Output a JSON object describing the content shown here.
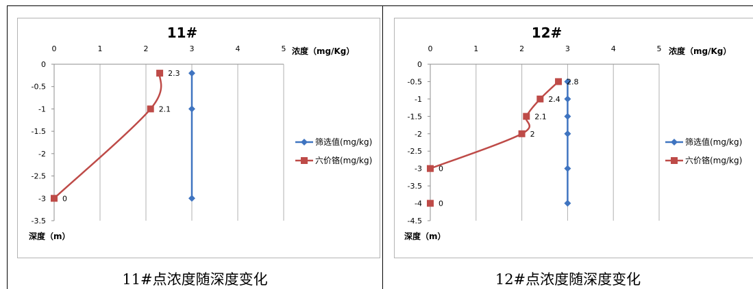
{
  "colors": {
    "screening": "#3f74c0",
    "chromium": "#be4b48",
    "grid": "#b0b0b0"
  },
  "panels": [
    {
      "caption": "11#点浓度随深度变化"
    },
    {
      "caption": "12#点浓度随深度变化"
    }
  ],
  "chart_data": [
    {
      "type": "line",
      "title": "11#",
      "xlabel": "浓度（mg/Kg）",
      "ylabel": "深度（m）",
      "x_ticks": [
        "0",
        "1",
        "2",
        "3",
        "4",
        "5"
      ],
      "y_ticks": [
        "0",
        "-0.5",
        "-1",
        "-1.5",
        "-2",
        "-2.5",
        "-3",
        "-3.5"
      ],
      "xlim": [
        0,
        5
      ],
      "ylim": [
        -3.5,
        0
      ],
      "grid": true,
      "legend_position": "right",
      "series": [
        {
          "name": "筛选值(mg/kg)",
          "points": [
            [
              3,
              -0.2
            ],
            [
              3,
              -1
            ],
            [
              3,
              -3
            ]
          ],
          "labels": []
        },
        {
          "name": "六价铬(mg/kg)",
          "points": [
            [
              2.3,
              -0.2
            ],
            [
              2.1,
              -1
            ],
            [
              0,
              -3
            ]
          ],
          "labels": [
            "2.3",
            "2.1",
            "0"
          ]
        }
      ]
    },
    {
      "type": "line",
      "title": "12#",
      "xlabel": "浓度（mg/Kg）",
      "ylabel": "深度（m）",
      "x_ticks": [
        "0",
        "1",
        "2",
        "3",
        "4",
        "5"
      ],
      "y_ticks": [
        "0",
        "-0.5",
        "-1",
        "-1.5",
        "-2",
        "-2.5",
        "-3",
        "-3.5",
        "-4",
        "-4.5"
      ],
      "xlim": [
        0,
        5
      ],
      "ylim": [
        -4.5,
        0
      ],
      "grid": true,
      "legend_position": "right",
      "series": [
        {
          "name": "筛选值(mg/kg)",
          "points": [
            [
              3,
              -0.5
            ],
            [
              3,
              -1
            ],
            [
              3,
              -1.5
            ],
            [
              3,
              -2
            ],
            [
              3,
              -3
            ],
            [
              3,
              -4
            ]
          ],
          "labels": []
        },
        {
          "name": "六价铬(mg/kg)",
          "points": [
            [
              2.8,
              -0.5
            ],
            [
              2.4,
              -1
            ],
            [
              2.1,
              -1.5
            ],
            [
              2,
              -2
            ],
            [
              0,
              -3
            ]
          ],
          "labels": [
            "2.8",
            "2.4",
            "2.1",
            "2",
            "0"
          ]
        },
        {
          "name": "",
          "points": [
            [
              0,
              -4
            ]
          ],
          "labels": [
            "0"
          ],
          "unconnected": true
        }
      ]
    }
  ]
}
